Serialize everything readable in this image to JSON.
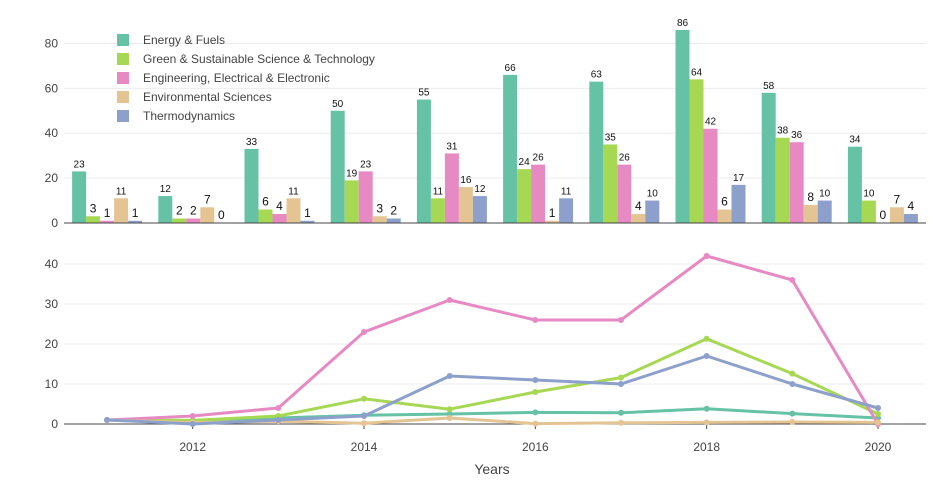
{
  "chart_data": [
    {
      "type": "bar",
      "categories": [
        "2011",
        "2012",
        "2013",
        "2014",
        "2015",
        "2016",
        "2017",
        "2018",
        "2019",
        "2020"
      ],
      "series": [
        {
          "name": "Energy & Fuels",
          "color": "#66c2a5",
          "values": [
            23,
            12,
            33,
            50,
            55,
            66,
            63,
            86,
            58,
            34
          ]
        },
        {
          "name": "Green & Sustainable Science & Technology",
          "color": "#a6d854",
          "values": [
            3,
            2,
            6,
            19,
            11,
            24,
            35,
            64,
            38,
            10
          ]
        },
        {
          "name": "Engineering, Electrical & Electronic",
          "color": "#e78ac3",
          "values": [
            1,
            2,
            4,
            23,
            31,
            26,
            26,
            42,
            36,
            0
          ]
        },
        {
          "name": "Environmental Sciences",
          "color": "#e5c494",
          "values": [
            11,
            7,
            11,
            3,
            16,
            1,
            4,
            6,
            8,
            7
          ]
        },
        {
          "name": "Thermodynamics",
          "color": "#8da0cb",
          "values": [
            1,
            0,
            1,
            2,
            12,
            11,
            10,
            17,
            10,
            4
          ]
        }
      ],
      "yticks": [
        0,
        20,
        40,
        60,
        80
      ],
      "ylim": [
        0,
        86
      ],
      "legend": "top-left",
      "grid": true
    },
    {
      "type": "line",
      "x": [
        2011,
        2012,
        2013,
        2014,
        2015,
        2016,
        2017,
        2018,
        2019,
        2020
      ],
      "series": [
        {
          "name": "Energy & Fuels",
          "color": "#66c2a5",
          "values": [
            1.0,
            0.5,
            1.5,
            2.2,
            2.5,
            2.9,
            2.8,
            3.8,
            2.6,
            1.5
          ]
        },
        {
          "name": "Green & Sustainable Science & Technology",
          "color": "#a6d854",
          "values": [
            1.0,
            0.9,
            2.0,
            6.3,
            3.7,
            8.0,
            11.6,
            21.3,
            12.6,
            2.5
          ]
        },
        {
          "name": "Engineering, Electrical & Electronic",
          "color": "#e78ac3",
          "values": [
            1.0,
            2.0,
            4.0,
            23.0,
            31.0,
            26.0,
            26.0,
            42.0,
            36.0,
            0.0
          ]
        },
        {
          "name": "Environmental Sciences",
          "color": "#e5c494",
          "values": [
            1.0,
            0.3,
            0.7,
            0.2,
            1.5,
            0.1,
            0.3,
            0.4,
            0.5,
            0.4
          ]
        },
        {
          "name": "Thermodynamics",
          "color": "#8da0cb",
          "values": [
            1.0,
            0.0,
            1.0,
            2.0,
            12.0,
            11.0,
            10.0,
            17.0,
            10.0,
            4.0
          ]
        }
      ],
      "xticks": [
        "2012",
        "2014",
        "2016",
        "2018",
        "2020"
      ],
      "yticks": [
        0,
        10,
        20,
        30,
        40
      ],
      "ylim": [
        0,
        43
      ],
      "xlabel": "Years",
      "grid": true
    }
  ]
}
